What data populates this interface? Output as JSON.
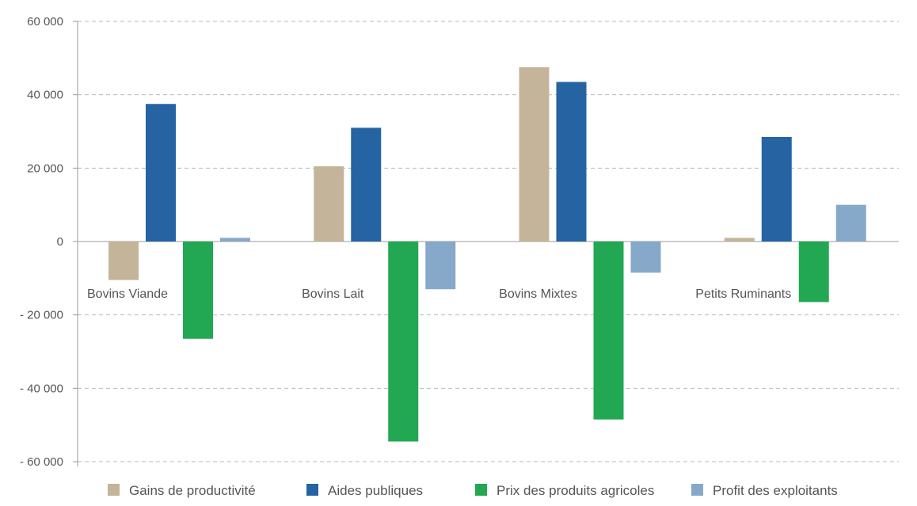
{
  "chart_data": {
    "type": "bar",
    "title": "",
    "xlabel": "",
    "ylabel": "",
    "categories": [
      "Bovins Viande",
      "Bovins Lait",
      "Bovins Mixtes",
      "Petits Ruminants"
    ],
    "ylim": [
      -60000,
      60000
    ],
    "yticks": [
      60000,
      40000,
      20000,
      0,
      -20000,
      -40000,
      -60000
    ],
    "ytick_labels": [
      "60 000",
      "40 000",
      "20 000",
      "0",
      "- 20 000",
      "- 40 000",
      "- 60 000"
    ],
    "grid": true,
    "legend_position": "bottom",
    "series": [
      {
        "name": "Gains de productivité",
        "color": "#c4b59a",
        "values": [
          -10500,
          20500,
          47500,
          1000
        ]
      },
      {
        "name": "Aides publiques",
        "color": "#2563a3",
        "values": [
          37500,
          31000,
          43500,
          28500
        ]
      },
      {
        "name": "Prix des produits agricoles",
        "color": "#22a753",
        "values": [
          -26500,
          -54500,
          -48500,
          -16500
        ]
      },
      {
        "name": "Profit des exploitants",
        "color": "#87a9c9",
        "values": [
          1000,
          -13000,
          -8500,
          10000
        ]
      }
    ]
  }
}
